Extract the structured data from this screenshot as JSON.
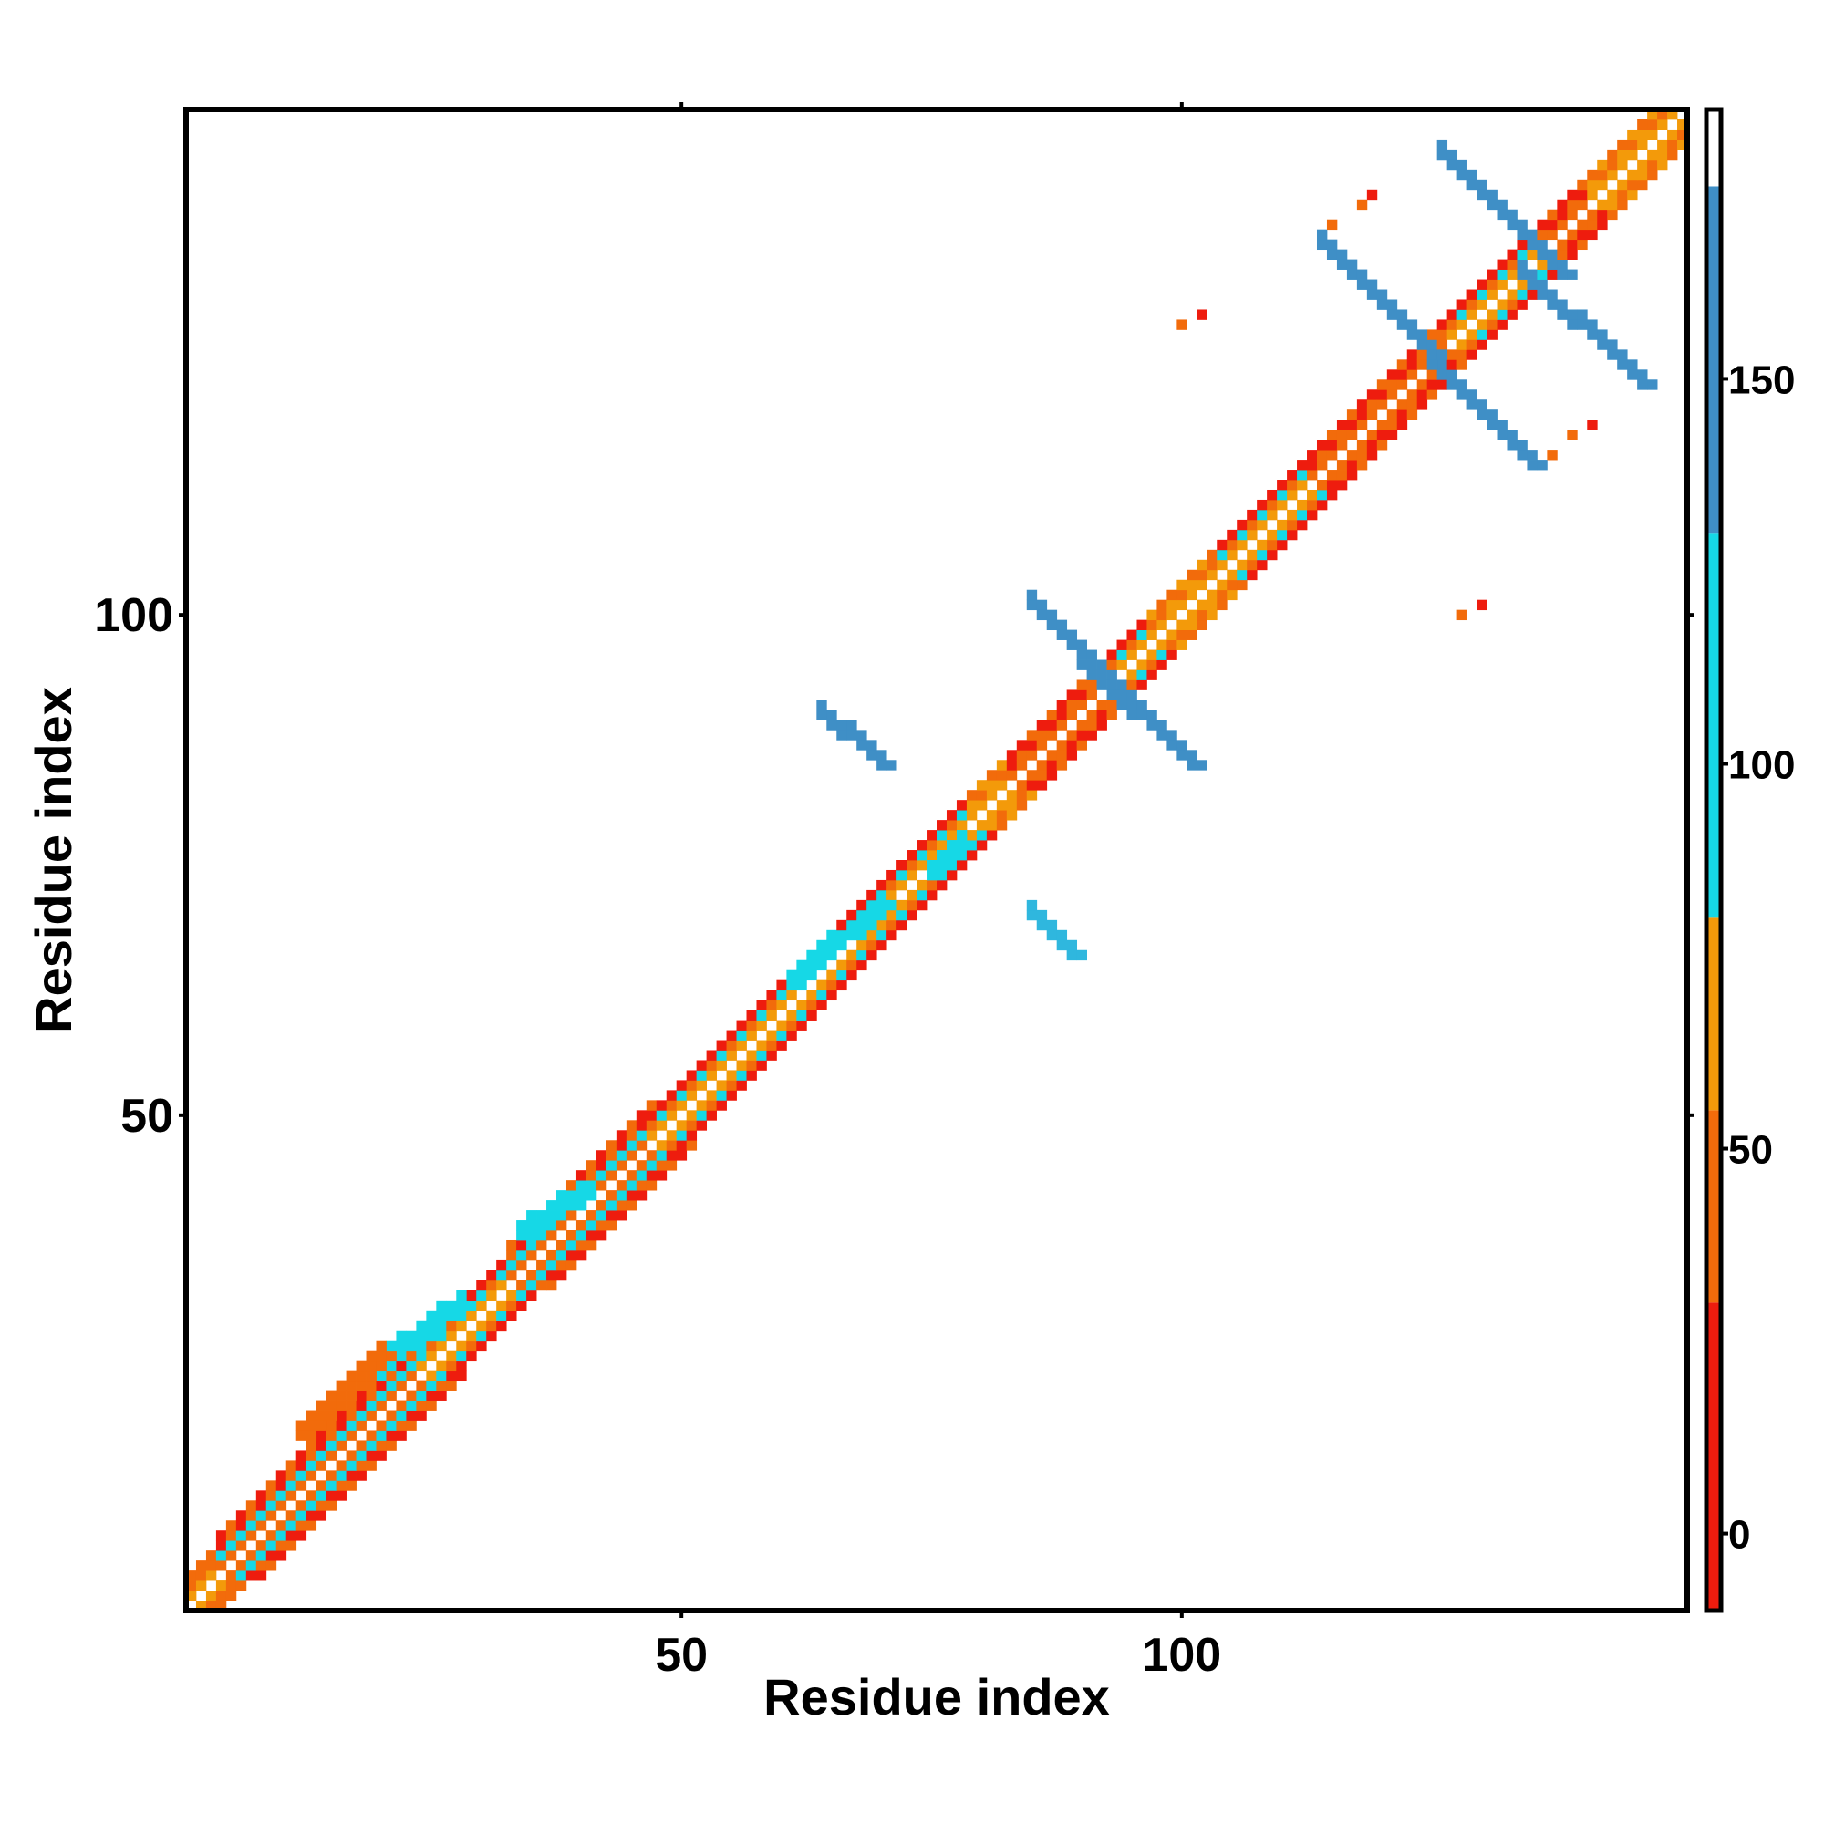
{
  "chart_data": {
    "type": "heatmap",
    "title": "",
    "xlabel": "Residue index",
    "ylabel": "Residue index",
    "xlim": [
      1,
      150
    ],
    "ylim": [
      1,
      150
    ],
    "x_ticks": [
      50,
      100
    ],
    "y_ticks": [
      50,
      100
    ],
    "grid": false,
    "colorbar": {
      "range": [
        -10,
        185
      ],
      "ticks": [
        0,
        50,
        100,
        150
      ],
      "bands": [
        {
          "from": -10,
          "to": 30,
          "color": "#ee1c0e"
        },
        {
          "from": 30,
          "to": 55,
          "color": "#f26b0b"
        },
        {
          "from": 55,
          "to": 80,
          "color": "#f39a0a"
        },
        {
          "from": 80,
          "to": 130,
          "color": "#16d8e6"
        },
        {
          "from": 130,
          "to": 175,
          "color": "#3f8fc6"
        },
        {
          "from": 175,
          "to": 185,
          "color": "#ffffff"
        }
      ]
    },
    "colors": {
      "red": "#ee1c0e",
      "orange": "#f26b0b",
      "amber": "#f39a0a",
      "cyan": "#16d8e6",
      "teal": "#2fb7de",
      "blue": "#3f8fc6"
    },
    "diagonal_segments": [
      {
        "start": 1,
        "end": 4,
        "pattern": "orange"
      },
      {
        "start": 4,
        "end": 24,
        "pattern": "beta"
      },
      {
        "start": 24,
        "end": 33,
        "pattern": "mixed"
      },
      {
        "start": 33,
        "end": 47,
        "pattern": "beta"
      },
      {
        "start": 47,
        "end": 58,
        "pattern": "mixed"
      },
      {
        "start": 58,
        "end": 71,
        "pattern": "mixed"
      },
      {
        "start": 71,
        "end": 79,
        "pattern": "mixed"
      },
      {
        "start": 79,
        "end": 83,
        "pattern": "amber"
      },
      {
        "start": 83,
        "end": 92,
        "pattern": "red"
      },
      {
        "start": 92,
        "end": 97,
        "pattern": "mixed"
      },
      {
        "start": 97,
        "end": 104,
        "pattern": "amber"
      },
      {
        "start": 104,
        "end": 113,
        "pattern": "mixed"
      },
      {
        "start": 113,
        "end": 127,
        "pattern": "red"
      },
      {
        "start": 127,
        "end": 136,
        "pattern": "mixed"
      },
      {
        "start": 136,
        "end": 141,
        "pattern": "red"
      },
      {
        "start": 141,
        "end": 150,
        "pattern": "amber"
      }
    ],
    "bands": [
      {
        "x0": 75,
        "y0": 74,
        "x1": 78,
        "y1": 77,
        "color": "cyan"
      },
      {
        "x0": 67,
        "y0": 68,
        "x1": 70,
        "y1": 71,
        "color": "cyan"
      },
      {
        "x0": 61,
        "y0": 63,
        "x1": 65,
        "y1": 67,
        "color": "cyan"
      },
      {
        "x0": 34,
        "y0": 38,
        "x1": 40,
        "y1": 42,
        "color": "cyan"
      },
      {
        "x0": 17,
        "y0": 23,
        "x1": 28,
        "y1": 31,
        "color": "cyan"
      },
      {
        "x0": 12,
        "y0": 18,
        "x1": 20,
        "y1": 26,
        "color": "orange"
      },
      {
        "x0": 85,
        "y0": 101,
        "x1": 96,
        "y1": 90,
        "color": "blue"
      },
      {
        "x0": 90,
        "y0": 95,
        "x1": 101,
        "y1": 85,
        "color": "blue"
      },
      {
        "x0": 64,
        "y0": 90,
        "x1": 70,
        "y1": 85,
        "color": "blue"
      },
      {
        "x0": 85,
        "y0": 70,
        "x1": 89,
        "y1": 66,
        "color": "teal"
      },
      {
        "x0": 126,
        "y0": 146,
        "x1": 138,
        "y1": 134,
        "color": "blue"
      },
      {
        "x0": 134,
        "y0": 134,
        "x1": 146,
        "y1": 123,
        "color": "blue"
      },
      {
        "x0": 114,
        "y0": 137,
        "x1": 125,
        "y1": 126,
        "color": "blue"
      },
      {
        "x0": 125,
        "y0": 125,
        "x1": 135,
        "y1": 115,
        "color": "blue"
      }
    ],
    "isolated_points": [
      {
        "x": 119,
        "y": 142,
        "color": "red"
      },
      {
        "x": 118,
        "y": 141,
        "color": "orange"
      },
      {
        "x": 115,
        "y": 139,
        "color": "orange"
      },
      {
        "x": 102,
        "y": 130,
        "color": "red"
      },
      {
        "x": 100,
        "y": 129,
        "color": "orange"
      },
      {
        "x": 141,
        "y": 119,
        "color": "red"
      },
      {
        "x": 139,
        "y": 118,
        "color": "orange"
      },
      {
        "x": 137,
        "y": 116,
        "color": "orange"
      },
      {
        "x": 130,
        "y": 101,
        "color": "red"
      },
      {
        "x": 128,
        "y": 100,
        "color": "orange"
      }
    ]
  }
}
